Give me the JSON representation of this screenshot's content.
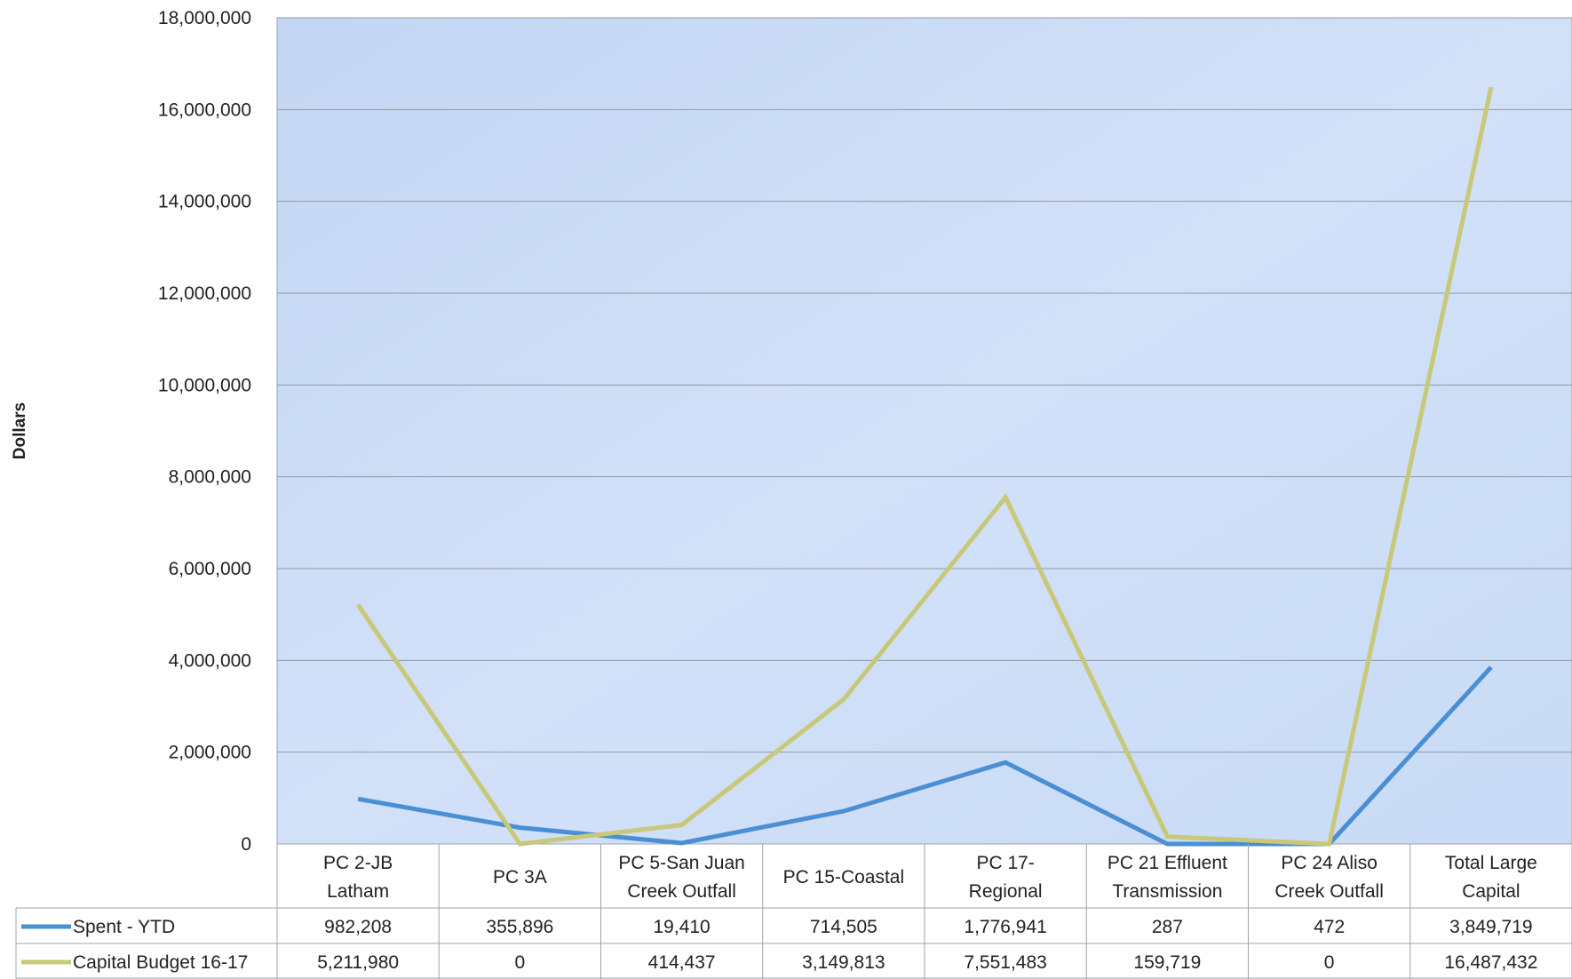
{
  "chart_data": {
    "type": "line",
    "ylabel": "Dollars",
    "ylim": [
      0,
      18000000
    ],
    "yticks": [
      "0",
      "2,000,000",
      "4,000,000",
      "6,000,000",
      "8,000,000",
      "10,000,000",
      "12,000,000",
      "14,000,000",
      "16,000,000",
      "18,000,000"
    ],
    "grid": true,
    "categories": [
      [
        "PC 2-JB",
        "Latham"
      ],
      [
        "PC 3A"
      ],
      [
        "PC 5-San Juan",
        "Creek Outfall"
      ],
      [
        "PC 15-Coastal"
      ],
      [
        "PC 17-",
        "Regional"
      ],
      [
        "PC 21 Effluent",
        "Transmission"
      ],
      [
        "PC 24 Aliso",
        "Creek Outfall"
      ],
      [
        "Total Large",
        "Capital"
      ]
    ],
    "series": [
      {
        "name": "Spent - YTD",
        "color": "#4a8fd4",
        "values": [
          982208,
          355896,
          19410,
          714505,
          1776941,
          287,
          472,
          3849719
        ],
        "labels": [
          "982,208",
          "355,896",
          "19,410",
          "714,505",
          "1,776,941",
          "287",
          "472",
          "3,849,719"
        ]
      },
      {
        "name": "Capital Budget 16-17",
        "color": "#c8c878",
        "values": [
          5211980,
          0,
          414437,
          3149813,
          7551483,
          159719,
          0,
          16487432
        ],
        "labels": [
          "5,211,980",
          "0",
          "414,437",
          "3,149,813",
          "7,551,483",
          "159,719",
          "0",
          "16,487,432"
        ]
      }
    ]
  }
}
